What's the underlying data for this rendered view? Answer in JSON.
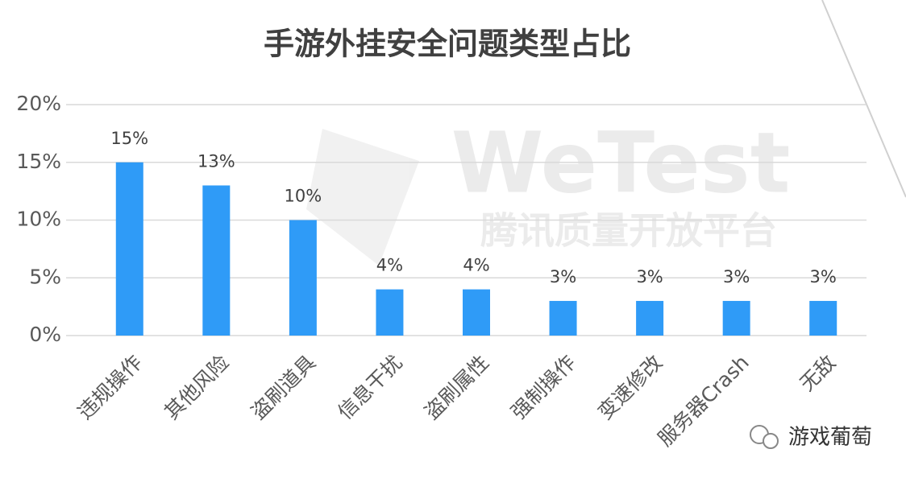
{
  "chart_data": {
    "type": "bar",
    "title": "手游外挂安全问题类型占比",
    "categories": [
      "违规操作",
      "其他风险",
      "盗刷道具",
      "信息干扰",
      "盗刷属性",
      "强制操作",
      "变速修改",
      "服务器Crash",
      "无敌"
    ],
    "values": [
      15,
      13,
      10,
      4,
      4,
      3,
      3,
      3,
      3
    ],
    "value_labels": [
      "15%",
      "13%",
      "10%",
      "4%",
      "4%",
      "3%",
      "3%",
      "3%",
      "3%"
    ],
    "color": "#2f9bf7",
    "ylim": [
      0,
      20
    ],
    "yticks": [
      {
        "value": 0,
        "label": "0%"
      },
      {
        "value": 5,
        "label": "5%"
      },
      {
        "value": 10,
        "label": "10%"
      },
      {
        "value": 15,
        "label": "15%"
      },
      {
        "value": 20,
        "label": "20%"
      }
    ],
    "grid": true
  },
  "watermark": {
    "brand": "WeTest",
    "subtitle": "腾讯质量开放平台"
  },
  "source": "游戏葡萄"
}
